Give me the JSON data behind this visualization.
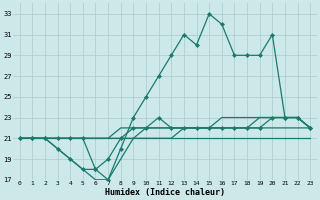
{
  "xlabel": "Humidex (Indice chaleur)",
  "bg_color": "#cce8e8",
  "grid_color": "#aacccc",
  "line_color": "#1a7a6e",
  "xlim": [
    -0.5,
    23.5
  ],
  "ylim": [
    17,
    34
  ],
  "yticks": [
    17,
    19,
    21,
    23,
    25,
    27,
    29,
    31,
    33
  ],
  "xticks": [
    0,
    1,
    2,
    3,
    4,
    5,
    6,
    7,
    8,
    9,
    10,
    11,
    12,
    13,
    14,
    15,
    16,
    17,
    18,
    19,
    20,
    21,
    22,
    23
  ],
  "series": [
    {
      "x": [
        0,
        1,
        2,
        3,
        4,
        5,
        6,
        7,
        8,
        9,
        10,
        11,
        12,
        13,
        14,
        15,
        16,
        17,
        18,
        19,
        20,
        21,
        22,
        23
      ],
      "y": [
        21,
        21,
        21,
        21,
        21,
        21,
        21,
        21,
        21,
        21,
        21,
        21,
        21,
        21,
        21,
        21,
        21,
        21,
        21,
        21,
        21,
        21,
        21,
        21
      ],
      "marker": false
    },
    {
      "x": [
        0,
        1,
        2,
        3,
        4,
        5,
        6,
        7,
        8,
        9,
        10,
        11,
        12,
        13,
        14,
        15,
        16,
        17,
        18,
        19,
        20,
        21,
        22,
        23
      ],
      "y": [
        21,
        21,
        21,
        21,
        21,
        21,
        21,
        21,
        21,
        21,
        21,
        21,
        21,
        22,
        22,
        22,
        22,
        22,
        22,
        22,
        22,
        22,
        22,
        22
      ],
      "marker": false
    },
    {
      "x": [
        0,
        1,
        2,
        3,
        4,
        5,
        6,
        7,
        8,
        9,
        10,
        11,
        12,
        13,
        14,
        15,
        16,
        17,
        18,
        19,
        20,
        21,
        22,
        23
      ],
      "y": [
        21,
        21,
        21,
        21,
        21,
        21,
        21,
        21,
        22,
        22,
        22,
        22,
        22,
        22,
        22,
        22,
        23,
        23,
        23,
        23,
        23,
        23,
        23,
        22
      ],
      "marker": false
    },
    {
      "x": [
        0,
        1,
        2,
        3,
        4,
        5,
        6,
        7,
        8,
        9,
        10,
        11,
        12,
        13,
        14,
        15,
        16,
        17,
        18,
        19,
        20,
        21,
        22,
        23
      ],
      "y": [
        21,
        21,
        21,
        20,
        19,
        18,
        18,
        19,
        21,
        22,
        22,
        23,
        22,
        22,
        22,
        22,
        22,
        22,
        22,
        22,
        23,
        23,
        23,
        22
      ],
      "marker": true
    },
    {
      "x": [
        0,
        1,
        2,
        3,
        4,
        5,
        6,
        7,
        8,
        9,
        10,
        11,
        12,
        13,
        14,
        15,
        16,
        17,
        18,
        19,
        20,
        21,
        22,
        23
      ],
      "y": [
        21,
        21,
        21,
        20,
        19,
        18,
        17,
        17,
        19,
        21,
        22,
        22,
        22,
        22,
        22,
        22,
        22,
        22,
        22,
        23,
        23,
        23,
        23,
        22
      ],
      "marker": false
    },
    {
      "x": [
        0,
        1,
        2,
        3,
        4,
        5,
        6,
        7,
        8,
        9,
        10,
        11,
        12,
        13,
        14,
        15,
        16,
        17,
        18,
        19,
        20,
        21,
        22,
        23
      ],
      "y": [
        21,
        21,
        21,
        21,
        21,
        21,
        18,
        17,
        20,
        23,
        25,
        27,
        29,
        31,
        30,
        33,
        32,
        29,
        29,
        29,
        31,
        23,
        23,
        22
      ],
      "marker": true
    }
  ]
}
